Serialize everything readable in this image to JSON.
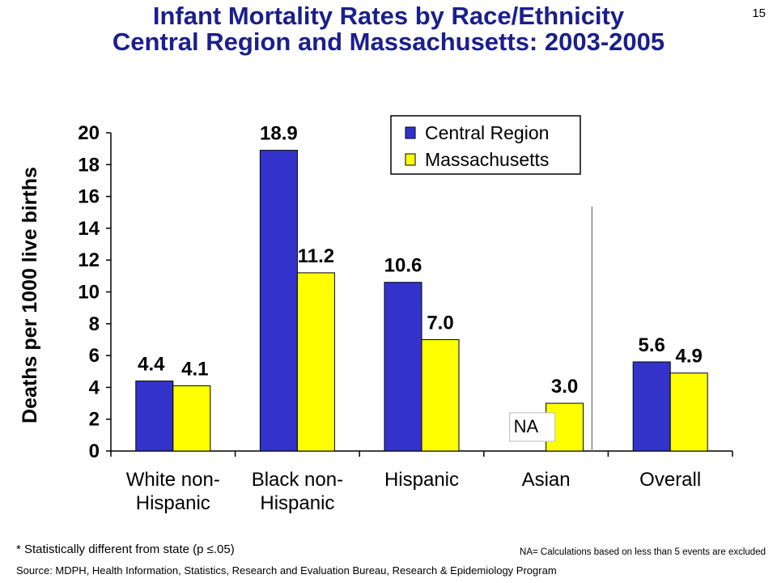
{
  "page_number": "15",
  "title_line1": "Infant Mortality Rates by Race/Ethnicity",
  "title_line2": "Central Region and Massachusetts: 2003-2005",
  "colors": {
    "central": "#3333cc",
    "ma": "#ffff00",
    "title": "#1a1f8c"
  },
  "chart_data": {
    "type": "bar",
    "categories": [
      "White non-Hispanic",
      "Black non-Hispanic",
      "Hispanic",
      "Asian",
      "Overall"
    ],
    "category_lines": [
      [
        "White non-",
        "Hispanic"
      ],
      [
        "Black non-",
        "Hispanic"
      ],
      [
        "Hispanic"
      ],
      [
        "Asian"
      ],
      [
        "Overall"
      ]
    ],
    "series": [
      {
        "name": "Central Region",
        "values": [
          4.4,
          18.9,
          10.6,
          null,
          5.6
        ],
        "labels": [
          "4.4",
          "18.9",
          "10.6",
          "NA",
          "5.6"
        ]
      },
      {
        "name": "Massachusetts",
        "values": [
          4.1,
          11.2,
          7.0,
          3.0,
          4.9
        ],
        "labels": [
          "4.1",
          "11.2",
          "7.0",
          "3.0",
          "4.9"
        ]
      }
    ],
    "ylabel": "Deaths per 1000 live births",
    "ylim": [
      0,
      20
    ],
    "yticks": [
      "0",
      "2",
      "4",
      "6",
      "8",
      "10",
      "12",
      "14",
      "16",
      "18",
      "20"
    ],
    "legend": "top-right",
    "grid": false
  },
  "footnotes": {
    "stat": "* Statistically different from state (p ≤.05)",
    "na": "NA= Calculations based on less than 5 events are excluded",
    "source": "Source:  MDPH, Health Information, Statistics, Research and Evaluation Bureau, Research & Epidemiology Program"
  }
}
